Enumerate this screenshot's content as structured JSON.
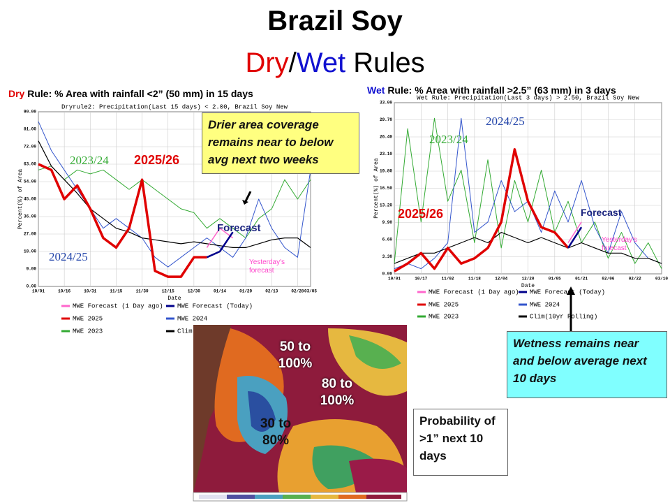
{
  "slide": {
    "title": "Brazil Soy",
    "subtitle_dry": "Dry",
    "subtitle_sep": "/",
    "subtitle_wet": "Wet",
    "subtitle_rest": "Rules",
    "dry_heading_word": "Dry",
    "dry_heading_rest": "Rule: % Area with rainfall <2” (50 mm) in 15 days",
    "wet_heading_word": "Wet",
    "wet_heading_rest": "Rule: % Area with rainfall >2.5” (63 mm) in 3 days",
    "dry_callout": "Drier area coverage remains near to below avg next two weeks",
    "wet_callout": "Wetness remains near and below average next 10 days",
    "map_callout": "Probability of >1” next 10 days",
    "map_labels": [
      "50 to 100%",
      "80 to 100%",
      "30 to 80%"
    ]
  },
  "chart_data": [
    {
      "type": "line",
      "title": "Dryrule2: Precipitation(Last 15 days) <  2.00, Brazil Soy New",
      "x_label": "Date",
      "y_label": "Percent(%) of Area",
      "categories": [
        "10/01",
        null,
        "10/16",
        null,
        "10/31",
        null,
        "11/15",
        null,
        "11/30",
        null,
        "12/15",
        null,
        "12/30",
        null,
        "01/14",
        null,
        "01/29",
        null,
        "02/13",
        null,
        "02/28",
        "03/05"
      ],
      "ylim": [
        0,
        90
      ],
      "yticks": [
        {
          "value": 0,
          "label": "0.00"
        },
        {
          "value": 9,
          "label": "9.00"
        },
        {
          "value": 18,
          "label": "18.00"
        },
        {
          "value": 27,
          "label": "27.00"
        },
        {
          "value": 36,
          "label": "36.00"
        },
        {
          "value": 45,
          "label": "45.00"
        },
        {
          "value": 54,
          "label": "54.00"
        },
        {
          "value": 63,
          "label": "63.00"
        },
        {
          "value": 72,
          "label": "72.00"
        },
        {
          "value": 81,
          "label": "81.00"
        },
        {
          "value": 90,
          "label": "90.00"
        }
      ],
      "grid": true,
      "series": [
        {
          "name": "MWE Forecast (1 Day ago)",
          "color": "#ff66cc",
          "values": [
            null,
            null,
            null,
            null,
            null,
            null,
            null,
            null,
            null,
            null,
            null,
            null,
            null,
            20,
            30,
            25,
            null,
            null,
            null,
            null,
            null,
            null
          ]
        },
        {
          "name": "MWE Forecast (Today)",
          "color": "#00008b",
          "values": [
            null,
            null,
            null,
            null,
            null,
            null,
            null,
            null,
            null,
            null,
            null,
            null,
            null,
            15,
            18,
            28,
            null,
            null,
            null,
            null,
            null,
            null
          ]
        },
        {
          "name": "MWE 2025",
          "color": "#e00000",
          "values": [
            63,
            60,
            45,
            52,
            40,
            25,
            20,
            30,
            55,
            8,
            5,
            5,
            15,
            15,
            null,
            null,
            null,
            null,
            null,
            null,
            null,
            null
          ]
        },
        {
          "name": "MWE 2024",
          "color": "#3355cc",
          "values": [
            85,
            70,
            60,
            50,
            40,
            30,
            35,
            30,
            25,
            15,
            10,
            15,
            20,
            25,
            20,
            15,
            25,
            45,
            30,
            20,
            15,
            60
          ]
        },
        {
          "name": "MWE 2023",
          "color": "#33aa33",
          "values": [
            60,
            62,
            55,
            60,
            58,
            60,
            55,
            50,
            55,
            50,
            45,
            40,
            38,
            30,
            35,
            30,
            25,
            35,
            40,
            55,
            45,
            55
          ]
        },
        {
          "name": "Clim(",
          "color": "#000000",
          "values": [
            75,
            62,
            55,
            48,
            40,
            35,
            30,
            28,
            25,
            24,
            23,
            22,
            23,
            22,
            21,
            20,
            20,
            22,
            24,
            25,
            25,
            20
          ]
        }
      ],
      "annotations": [
        "2023/24",
        "2025/26",
        "2024/25",
        "Forecast",
        "Yesterday's forecast"
      ]
    },
    {
      "type": "line",
      "title": "Wet Rule: Precipitation(Last 3 days) >  2.50, Brazil Soy New",
      "x_label": "Date",
      "y_label": "Percent(%) of Area",
      "categories": [
        "10/01",
        null,
        "10/17",
        null,
        "11/02",
        null,
        "11/18",
        null,
        "12/04",
        null,
        "12/20",
        null,
        "01/05",
        null,
        "01/21",
        null,
        "02/06",
        null,
        "02/22",
        null,
        "03/10"
      ],
      "ylim": [
        0,
        33
      ],
      "yticks": [
        {
          "value": 0,
          "label": "0.00"
        },
        {
          "value": 3.3,
          "label": "3.30"
        },
        {
          "value": 6.6,
          "label": "6.60"
        },
        {
          "value": 9.9,
          "label": "9.90"
        },
        {
          "value": 13.2,
          "label": "13.20"
        },
        {
          "value": 16.5,
          "label": "16.50"
        },
        {
          "value": 19.8,
          "label": "19.80"
        },
        {
          "value": 23.1,
          "label": "23.10"
        },
        {
          "value": 26.4,
          "label": "26.40"
        },
        {
          "value": 29.7,
          "label": "29.70"
        },
        {
          "value": 33,
          "label": "33.00"
        }
      ],
      "grid": true,
      "series": [
        {
          "name": "MWE Forecast (1 Day ago)",
          "color": "#ff66cc",
          "values": [
            null,
            null,
            null,
            null,
            null,
            null,
            null,
            null,
            null,
            null,
            null,
            null,
            null,
            6,
            10,
            null,
            null,
            null,
            null,
            null,
            null
          ]
        },
        {
          "name": "MWE Forecast (Today)",
          "color": "#00008b",
          "values": [
            null,
            null,
            null,
            null,
            null,
            null,
            null,
            null,
            null,
            null,
            null,
            null,
            null,
            5,
            9,
            null,
            null,
            null,
            null,
            null,
            null
          ]
        },
        {
          "name": "MWE 2025",
          "color": "#e00000",
          "values": [
            0.5,
            2,
            4,
            1,
            5,
            2,
            3,
            5,
            10,
            24,
            14,
            9,
            8,
            5,
            null,
            null,
            null,
            null,
            null,
            null,
            null
          ]
        },
        {
          "name": "MWE 2024",
          "color": "#3355cc",
          "values": [
            1,
            2,
            1,
            3,
            6,
            30,
            8,
            10,
            18,
            12,
            14,
            8,
            16,
            10,
            18,
            9,
            4,
            12,
            6,
            3,
            2
          ]
        },
        {
          "name": "MWE 2023",
          "color": "#33aa33",
          "values": [
            2,
            28,
            10,
            30,
            14,
            20,
            6,
            22,
            5,
            18,
            10,
            20,
            8,
            14,
            6,
            10,
            3,
            8,
            2,
            6,
            1
          ]
        },
        {
          "name": "Clim(10yr Rolling)",
          "color": "#000000",
          "values": [
            2,
            3,
            4,
            4,
            5,
            6,
            7,
            6,
            8,
            7,
            6,
            7,
            6,
            5,
            6,
            5,
            4,
            4,
            3,
            3,
            2
          ]
        }
      ],
      "annotations": [
        "2024/25",
        "2023/24",
        "2025/26",
        "Forecast",
        "Yesterday's forecast"
      ]
    }
  ]
}
